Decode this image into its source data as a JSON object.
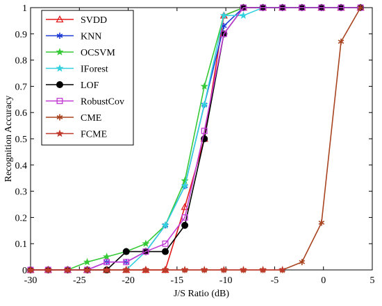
{
  "chart_data": {
    "type": "line",
    "title": "",
    "xlabel": "J/S Ratio  (dB)",
    "ylabel": "Recognition Accuracy",
    "xlim": [
      -30,
      5
    ],
    "ylim": [
      0,
      1
    ],
    "xticks": [
      -30,
      -25,
      -20,
      -15,
      -10,
      -5,
      0,
      5
    ],
    "yticks": [
      0,
      0.1,
      0.2,
      0.3,
      0.4,
      0.5,
      0.6,
      0.7,
      0.8,
      0.9,
      1
    ],
    "grid": false,
    "legend_position": "top-left",
    "series": [
      {
        "name": "SVDD",
        "color": "#e31a1c",
        "marker": "triangle",
        "x": [
          -30,
          -28.2,
          -26.2,
          -24.2,
          -22.2,
          -20.2,
          -18.2,
          -16.2,
          -14.2,
          -12.2,
          -10.2,
          -8.2,
          -6.2,
          -4.2,
          -2.2,
          -0.2,
          1.8,
          3.8
        ],
        "y": [
          0,
          0,
          0,
          0,
          0,
          0,
          0,
          0,
          0.24,
          0.5,
          0.97,
          1,
          1,
          1,
          1,
          1,
          1,
          1
        ]
      },
      {
        "name": "KNN",
        "color": "#1f3bd6",
        "marker": "asterisk",
        "x": [
          -30,
          -28.2,
          -26.2,
          -24.2,
          -22.2,
          -20.2,
          -18.2,
          -16.2,
          -14.2,
          -12.2,
          -10.2,
          -8.2,
          -6.2,
          -4.2,
          -2.2,
          -0.2,
          1.8,
          3.8
        ],
        "y": [
          0,
          0,
          0,
          0,
          0.03,
          0.03,
          0.07,
          0.17,
          0.32,
          0.63,
          0.93,
          1,
          1,
          1,
          1,
          1,
          1,
          1
        ]
      },
      {
        "name": "OCSVM",
        "color": "#36c936",
        "marker": "star",
        "x": [
          -30,
          -28.2,
          -26.2,
          -24.2,
          -22.2,
          -20.2,
          -18.2,
          -16.2,
          -14.2,
          -12.2,
          -10.2,
          -8.2,
          -6.2,
          -4.2,
          -2.2,
          -0.2,
          1.8,
          3.8
        ],
        "y": [
          0,
          0,
          0,
          0.03,
          0.05,
          0.07,
          0.1,
          0.17,
          0.34,
          0.7,
          0.97,
          1,
          1,
          1,
          1,
          1,
          1,
          1
        ]
      },
      {
        "name": "IForest",
        "color": "#33d1e0",
        "marker": "star",
        "x": [
          -30,
          -28.2,
          -26.2,
          -24.2,
          -22.2,
          -20.2,
          -18.2,
          -16.2,
          -14.2,
          -12.2,
          -10.2,
          -8.2,
          -6.2,
          -4.2,
          -2.2,
          -0.2,
          1.8,
          3.8
        ],
        "y": [
          0,
          0,
          0,
          0,
          0,
          0,
          0.07,
          0.17,
          0.32,
          0.63,
          0.97,
          0.97,
          1,
          1,
          1,
          1,
          1,
          1
        ]
      },
      {
        "name": "LOF",
        "color": "#000000",
        "marker": "circle",
        "x": [
          -30,
          -28.2,
          -26.2,
          -24.2,
          -22.2,
          -20.2,
          -18.2,
          -16.2,
          -14.2,
          -12.2,
          -10.2,
          -8.2,
          -6.2,
          -4.2,
          -2.2,
          -0.2,
          1.8,
          3.8
        ],
        "y": [
          0,
          0,
          0,
          0,
          0,
          0.07,
          0.07,
          0.07,
          0.17,
          0.5,
          0.9,
          1,
          1,
          1,
          1,
          1,
          1,
          1
        ]
      },
      {
        "name": "RobustCov",
        "color": "#c23bd6",
        "marker": "square",
        "x": [
          -30,
          -28.2,
          -26.2,
          -24.2,
          -22.2,
          -20.2,
          -18.2,
          -16.2,
          -14.2,
          -12.2,
          -10.2,
          -8.2,
          -6.2,
          -4.2,
          -2.2,
          -0.2,
          1.8,
          3.8
        ],
        "y": [
          0,
          0,
          0,
          0,
          0.03,
          0.03,
          0.07,
          0.1,
          0.2,
          0.53,
          0.9,
          1,
          1,
          1,
          1,
          1,
          1,
          1
        ]
      },
      {
        "name": "CME",
        "color": "#a8431f",
        "marker": "asterisk",
        "x": [
          -30,
          -28.2,
          -26.2,
          -24.2,
          -22.2,
          -20.2,
          -18.2,
          -16.2,
          -14.2,
          -12.2,
          -10.2,
          -8.2,
          -6.2,
          -4.2,
          -2.2,
          -0.2,
          1.8,
          3.8
        ],
        "y": [
          0,
          0,
          0,
          0,
          0,
          0,
          0,
          0,
          0,
          0,
          0,
          0,
          0,
          0,
          0.03,
          0.18,
          0.87,
          1
        ]
      },
      {
        "name": "FCME",
        "color": "#c0392b",
        "marker": "star",
        "x": [
          -30,
          -28.2,
          -26.2,
          -24.2,
          -22.2,
          -20.2,
          -18.2,
          -16.2,
          -14.2,
          -12.2,
          -10.2,
          -8.2,
          -6.2,
          -4.2
        ],
        "y": [
          0,
          0,
          0,
          0,
          0,
          0,
          0,
          0,
          0,
          0,
          0,
          0,
          0,
          0
        ]
      }
    ]
  }
}
